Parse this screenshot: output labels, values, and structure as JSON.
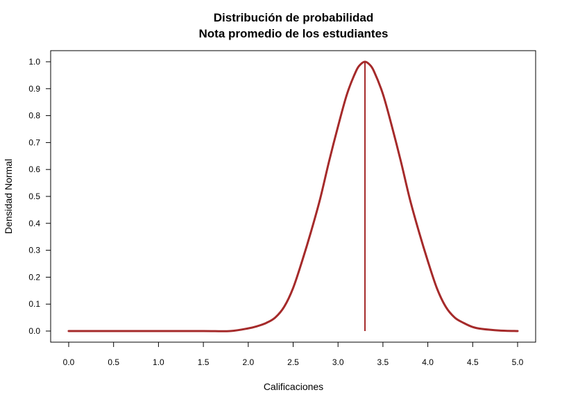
{
  "chart_data": {
    "type": "line",
    "title": "Distribución de probabilidad",
    "subtitle": "Nota promedio de los estudiantes",
    "xlabel": "Calificaciones",
    "ylabel": "Densidad Normal",
    "xlim": [
      0,
      5
    ],
    "ylim": [
      0,
      1
    ],
    "grid": false,
    "x_ticks": [
      0.0,
      0.5,
      1.0,
      1.5,
      2.0,
      2.5,
      3.0,
      3.5,
      4.0,
      4.5,
      5.0
    ],
    "x_tick_labels": [
      "0.0",
      "0.5",
      "1.0",
      "1.5",
      "2.0",
      "2.5",
      "3.0",
      "3.5",
      "4.0",
      "4.5",
      "5.0"
    ],
    "y_ticks": [
      0.0,
      0.1,
      0.2,
      0.3,
      0.4,
      0.5,
      0.6,
      0.7,
      0.8,
      0.9,
      1.0
    ],
    "y_tick_labels": [
      "0.0",
      "0.1",
      "0.2",
      "0.3",
      "0.4",
      "0.5",
      "0.6",
      "0.7",
      "0.8",
      "0.9",
      "1.0"
    ],
    "series": [
      {
        "color": "#a52a2a",
        "x": [
          0.0,
          0.5,
          1.0,
          1.5,
          1.8,
          2.0,
          2.1,
          2.2,
          2.3,
          2.4,
          2.5,
          2.6,
          2.7,
          2.8,
          2.9,
          3.0,
          3.1,
          3.2,
          3.25,
          3.3,
          3.35,
          3.4,
          3.5,
          3.6,
          3.7,
          3.8,
          3.9,
          4.0,
          4.1,
          4.2,
          4.3,
          4.4,
          4.5,
          4.6,
          4.8,
          5.0
        ],
        "y": [
          0.0,
          0.0,
          0.0,
          0.0,
          0.0,
          0.01,
          0.018,
          0.03,
          0.05,
          0.09,
          0.16,
          0.26,
          0.37,
          0.49,
          0.63,
          0.76,
          0.88,
          0.965,
          0.99,
          1.0,
          0.99,
          0.965,
          0.88,
          0.76,
          0.63,
          0.49,
          0.37,
          0.26,
          0.16,
          0.09,
          0.05,
          0.03,
          0.015,
          0.008,
          0.002,
          0.0
        ]
      }
    ],
    "reference_line": {
      "x": 3.3,
      "y_from": 0.0,
      "y_to": 1.0,
      "color": "#a52a2a"
    }
  }
}
